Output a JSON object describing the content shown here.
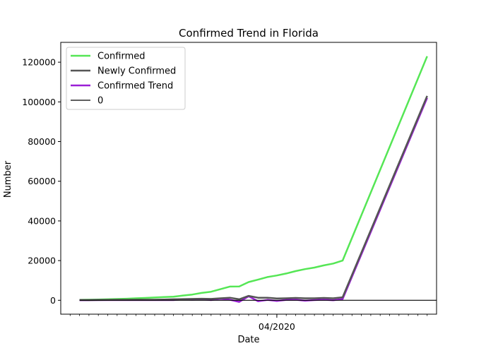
{
  "chart_data": {
    "type": "line",
    "title": "Confirmed Trend in Florida",
    "xlabel": "Date",
    "ylabel": "Number",
    "ylim": [
      -7000,
      130000
    ],
    "xlim": [
      -2,
      38
    ],
    "yticks": [
      0,
      20000,
      40000,
      60000,
      80000,
      100000,
      120000
    ],
    "xtick_label": {
      "index": 21,
      "label": "04/2020"
    },
    "legend_position": "top-left",
    "grid": false,
    "series": [
      {
        "name": "Confirmed",
        "color": "#55e655",
        "values": [
          200,
          300,
          400,
          500,
          650,
          800,
          1000,
          1200,
          1400,
          1600,
          1800,
          2400,
          2900,
          3700,
          4300,
          5600,
          6900,
          7000,
          9200,
          10400,
          11700,
          12500,
          13500,
          14700,
          15700,
          16500,
          17600,
          18500,
          20000,
          123000
        ]
      },
      {
        "name": "Newly Confirmed",
        "color": "#555555",
        "values": [
          150,
          100,
          150,
          200,
          250,
          250,
          300,
          300,
          300,
          400,
          500,
          600,
          700,
          800,
          700,
          1000,
          1300,
          500,
          2200,
          1300,
          1300,
          900,
          1000,
          1200,
          1000,
          1000,
          1200,
          1000,
          1500,
          103000
        ]
      },
      {
        "name": "Confirmed Trend",
        "color": "#9a1fd6",
        "values": [
          50,
          50,
          100,
          100,
          100,
          100,
          100,
          100,
          100,
          100,
          100,
          500,
          300,
          500,
          100,
          800,
          300,
          -800,
          2000,
          -500,
          200,
          -300,
          200,
          300,
          -200,
          100,
          300,
          0,
          600,
          102000
        ]
      },
      {
        "name": "0",
        "color": "#000000",
        "values": [
          0,
          0
        ]
      }
    ]
  }
}
